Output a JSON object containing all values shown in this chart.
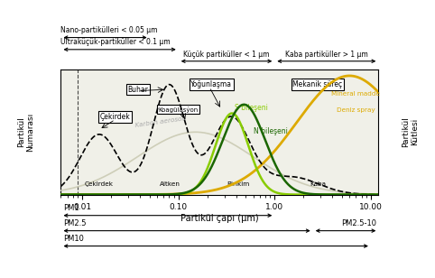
{
  "xlabel": "Partikül çapı (μm)",
  "ylabel_left": "Partikül\nNumarası",
  "ylabel_right": "Partikül\nKütlesi",
  "background_color": "#ffffff",
  "plot_bg": "#f0f0e8",
  "curve_dashed_color": "#000000",
  "curve_S_color": "#88cc00",
  "curve_N_color": "#1a6600",
  "curve_yellow_color": "#ddaa00",
  "curve_karbon_color": "#c8c8b0",
  "annotations": {
    "Nano": "Nano-partikülleri < 0.05 μm",
    "Ultra": "Ultraküçük-partiküller < 0.1 μm",
    "Kucuk": "Küçük partiküller < 1 μm",
    "Kaba_header": "Kaba partiküller > 1 μm",
    "Buhar": "Buhar",
    "Yogunlasma": "Yoğunlaşma",
    "Mekanik": "Mekanik süreç",
    "Karbon": "Karbon aerosol",
    "Cekirdek_box": "Çekirdek",
    "Koagulasyon": "Koagülasýon",
    "Cekirdek_label": "Çekirdek",
    "Aitken": "Aitken",
    "Birikim": "Birikim",
    "Kaba_label": "Kaba",
    "S_bileseni": "S bileşeni",
    "N_bileseni": "N bileşeni",
    "Mineral": "Mineral madde",
    "Deniz": "Deniz spray",
    "PM1": "PM1",
    "PM25": "PM2.5",
    "PM10": "PM10",
    "PM25_10": "PM2.5-10"
  }
}
